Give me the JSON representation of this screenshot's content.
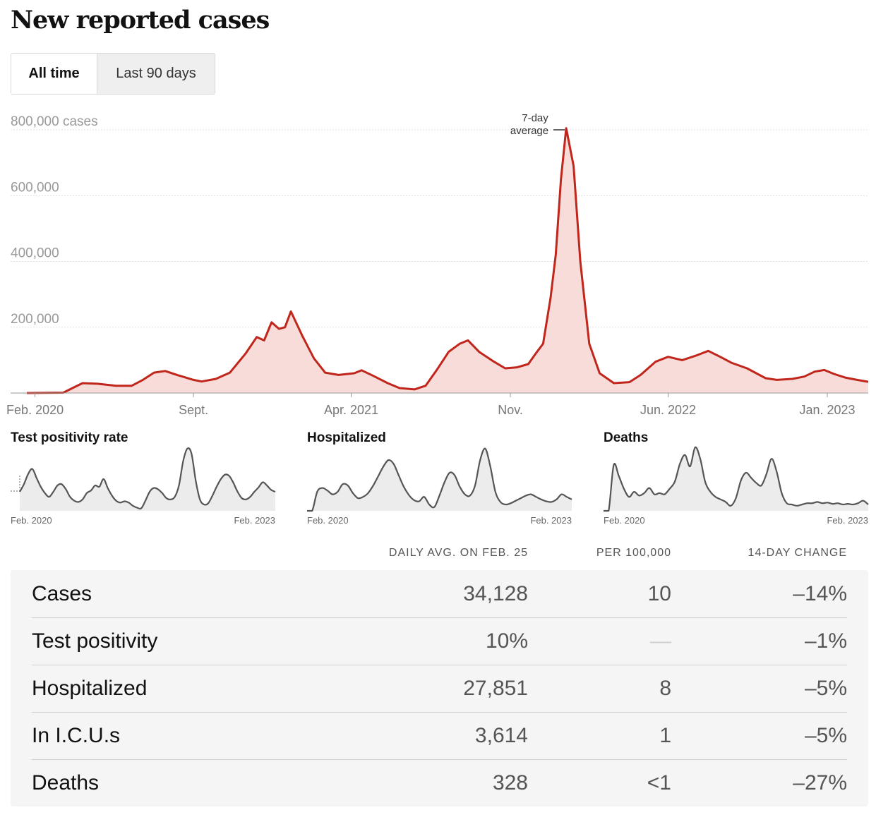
{
  "page_title": "New reported cases",
  "range_toggle": {
    "options": [
      "All time",
      "Last 90 days"
    ],
    "selected": "All time"
  },
  "colors": {
    "cases_line": "#c0261b",
    "cases_fill": "#f7dcd9",
    "small_line": "#555555",
    "small_fill": "#ececec"
  },
  "chart_data": [
    {
      "type": "area",
      "ylabel_unit": "cases",
      "annotation": [
        "7-day",
        "average"
      ],
      "ylim": [
        0,
        800000
      ],
      "y_ticks": [
        {
          "value": 800000,
          "label": "800,000 cases"
        },
        {
          "value": 600000,
          "label": "600,000"
        },
        {
          "value": 400000,
          "label": "400,000"
        },
        {
          "value": 200000,
          "label": "200,000"
        }
      ],
      "xlim": [
        "2020-01-21",
        "2023-02-25"
      ],
      "x_ticks": [
        {
          "date": "2020-02-01",
          "label": "Feb. 2020"
        },
        {
          "date": "2020-09-01",
          "label": "Sept."
        },
        {
          "date": "2021-04-01",
          "label": "Apr. 2021"
        },
        {
          "date": "2021-11-01",
          "label": "Nov."
        },
        {
          "date": "2022-06-01",
          "label": "Jun. 2022"
        },
        {
          "date": "2023-01-01",
          "label": "Jan. 2023"
        }
      ],
      "grid": true,
      "series": [
        {
          "points": [
            [
              "2020-01-21",
              0
            ],
            [
              "2020-03-10",
              1000
            ],
            [
              "2020-03-25",
              18000
            ],
            [
              "2020-04-05",
              30000
            ],
            [
              "2020-04-25",
              28000
            ],
            [
              "2020-05-20",
              22000
            ],
            [
              "2020-06-10",
              22000
            ],
            [
              "2020-06-25",
              40000
            ],
            [
              "2020-07-10",
              62000
            ],
            [
              "2020-07-25",
              67000
            ],
            [
              "2020-08-10",
              55000
            ],
            [
              "2020-09-01",
              40000
            ],
            [
              "2020-09-12",
              35000
            ],
            [
              "2020-10-01",
              43000
            ],
            [
              "2020-10-20",
              62000
            ],
            [
              "2020-11-10",
              120000
            ],
            [
              "2020-11-25",
              170000
            ],
            [
              "2020-12-05",
              160000
            ],
            [
              "2020-12-15",
              215000
            ],
            [
              "2020-12-25",
              195000
            ],
            [
              "2021-01-02",
              200000
            ],
            [
              "2021-01-10",
              248000
            ],
            [
              "2021-01-25",
              175000
            ],
            [
              "2021-02-10",
              105000
            ],
            [
              "2021-02-25",
              62000
            ],
            [
              "2021-03-15",
              55000
            ],
            [
              "2021-04-05",
              60000
            ],
            [
              "2021-04-15",
              69000
            ],
            [
              "2021-05-01",
              52000
            ],
            [
              "2021-05-20",
              30000
            ],
            [
              "2021-06-05",
              15000
            ],
            [
              "2021-06-25",
              11000
            ],
            [
              "2021-07-10",
              22000
            ],
            [
              "2021-07-25",
              70000
            ],
            [
              "2021-08-10",
              125000
            ],
            [
              "2021-08-25",
              150000
            ],
            [
              "2021-09-05",
              160000
            ],
            [
              "2021-09-20",
              125000
            ],
            [
              "2021-10-10",
              95000
            ],
            [
              "2021-10-25",
              75000
            ],
            [
              "2021-11-10",
              78000
            ],
            [
              "2021-11-25",
              88000
            ],
            [
              "2021-12-05",
              120000
            ],
            [
              "2021-12-15",
              150000
            ],
            [
              "2021-12-25",
              290000
            ],
            [
              "2022-01-01",
              420000
            ],
            [
              "2022-01-08",
              650000
            ],
            [
              "2022-01-15",
              805000
            ],
            [
              "2022-01-25",
              690000
            ],
            [
              "2022-02-03",
              400000
            ],
            [
              "2022-02-15",
              150000
            ],
            [
              "2022-03-01",
              60000
            ],
            [
              "2022-03-20",
              30000
            ],
            [
              "2022-04-10",
              33000
            ],
            [
              "2022-04-25",
              55000
            ],
            [
              "2022-05-15",
              95000
            ],
            [
              "2022-06-01",
              110000
            ],
            [
              "2022-06-20",
              100000
            ],
            [
              "2022-07-10",
              115000
            ],
            [
              "2022-07-25",
              128000
            ],
            [
              "2022-08-10",
              110000
            ],
            [
              "2022-08-25",
              92000
            ],
            [
              "2022-09-15",
              75000
            ],
            [
              "2022-10-10",
              45000
            ],
            [
              "2022-10-25",
              40000
            ],
            [
              "2022-11-15",
              43000
            ],
            [
              "2022-12-01",
              50000
            ],
            [
              "2022-12-15",
              65000
            ],
            [
              "2022-12-28",
              70000
            ],
            [
              "2023-01-10",
              58000
            ],
            [
              "2023-01-25",
              47000
            ],
            [
              "2023-02-10",
              40000
            ],
            [
              "2023-02-25",
              34128
            ]
          ]
        }
      ]
    },
    {
      "type": "area",
      "title": "Test positivity rate",
      "x_labels": [
        "Feb. 2020",
        "Feb. 2023"
      ],
      "series": [
        {
          "values": [
            0.3,
            0.42,
            0.58,
            0.66,
            0.52,
            0.38,
            0.28,
            0.22,
            0.3,
            0.4,
            0.42,
            0.34,
            0.22,
            0.16,
            0.14,
            0.18,
            0.28,
            0.32,
            0.4,
            0.38,
            0.5,
            0.36,
            0.24,
            0.16,
            0.13,
            0.15,
            0.13,
            0.08,
            0.05,
            0.04,
            0.16,
            0.3,
            0.36,
            0.34,
            0.28,
            0.2,
            0.18,
            0.22,
            0.4,
            0.78,
            0.98,
            0.9,
            0.48,
            0.18,
            0.1,
            0.12,
            0.24,
            0.38,
            0.5,
            0.57,
            0.55,
            0.44,
            0.3,
            0.2,
            0.18,
            0.22,
            0.3,
            0.37,
            0.45,
            0.4,
            0.33,
            0.3
          ]
        }
      ]
    },
    {
      "type": "area",
      "title": "Hospitalized",
      "x_labels": [
        "Feb. 2020",
        "Feb. 2023"
      ],
      "series": [
        {
          "values": [
            0.0,
            0.0,
            0.3,
            0.36,
            0.32,
            0.26,
            0.3,
            0.42,
            0.4,
            0.28,
            0.2,
            0.22,
            0.28,
            0.4,
            0.55,
            0.7,
            0.8,
            0.74,
            0.56,
            0.38,
            0.25,
            0.17,
            0.15,
            0.22,
            0.1,
            0.06,
            0.24,
            0.45,
            0.6,
            0.56,
            0.38,
            0.26,
            0.24,
            0.4,
            0.8,
            0.98,
            0.7,
            0.3,
            0.14,
            0.1,
            0.12,
            0.16,
            0.2,
            0.24,
            0.26,
            0.22,
            0.18,
            0.15,
            0.14,
            0.18,
            0.26,
            0.22,
            0.18
          ]
        }
      ]
    },
    {
      "type": "area",
      "title": "Deaths",
      "x_labels": [
        "Feb. 2020",
        "Feb. 2023"
      ],
      "series": [
        {
          "values": [
            0.0,
            0.0,
            0.72,
            0.55,
            0.35,
            0.22,
            0.3,
            0.24,
            0.28,
            0.36,
            0.26,
            0.28,
            0.26,
            0.35,
            0.46,
            0.74,
            0.88,
            0.7,
            1.0,
            0.82,
            0.45,
            0.3,
            0.22,
            0.18,
            0.14,
            0.08,
            0.2,
            0.48,
            0.6,
            0.52,
            0.44,
            0.4,
            0.58,
            0.82,
            0.62,
            0.28,
            0.12,
            0.1,
            0.08,
            0.1,
            0.12,
            0.12,
            0.14,
            0.12,
            0.13,
            0.11,
            0.12,
            0.1,
            0.11,
            0.1,
            0.12,
            0.16,
            0.1
          ]
        }
      ]
    }
  ],
  "table": {
    "headers": {
      "avg": "DAILY AVG. ON FEB. 25",
      "per": "PER 100,000",
      "change": "14-DAY CHANGE"
    },
    "rows": [
      {
        "label": "Cases",
        "avg": "34,128",
        "per": "10",
        "change": "–14%"
      },
      {
        "label": "Test positivity",
        "avg": "10%",
        "per": "—",
        "change": "–1%"
      },
      {
        "label": "Hospitalized",
        "avg": "27,851",
        "per": "8",
        "change": "–5%"
      },
      {
        "label": "In I.C.U.s",
        "avg": "3,614",
        "per": "1",
        "change": "–5%"
      },
      {
        "label": "Deaths",
        "avg": "328",
        "per": "<1",
        "change": "–27%"
      }
    ]
  }
}
